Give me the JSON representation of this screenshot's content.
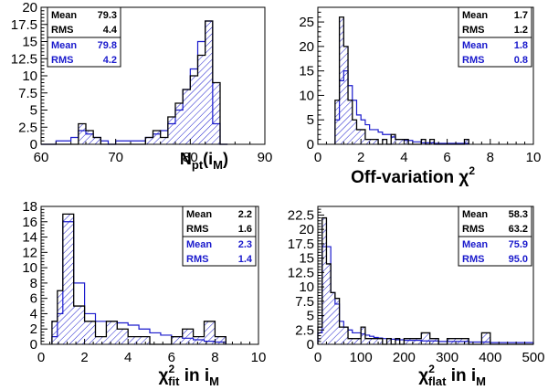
{
  "colors": {
    "black_series": "#000000",
    "blue_series": "#1a1acc"
  },
  "chart_data": [
    {
      "type": "histogram",
      "title": "",
      "xlabel": "N_pt(i_M)",
      "xlabel_main": "N",
      "xlabel_sub": "pt",
      "xlabel_tail": "(i",
      "xlabel_tail_sub": "M",
      "xlabel_end": ")",
      "xlim": [
        60,
        90
      ],
      "ylim": [
        0,
        20
      ],
      "xticks": [
        60,
        70,
        80,
        90
      ],
      "yticks": [
        0,
        2.5,
        5,
        7.5,
        10,
        12.5,
        15,
        17.5,
        20
      ],
      "xtick_labels": [
        "60",
        "70",
        "80",
        "90"
      ],
      "ytick_labels": [
        "0",
        "2.5",
        "5",
        "7.5",
        "10",
        "12.5",
        "15",
        "17.5",
        "20"
      ],
      "bin_edges": [
        60,
        61,
        62,
        63,
        64,
        65,
        66,
        67,
        68,
        69,
        70,
        71,
        72,
        73,
        74,
        75,
        76,
        77,
        78,
        79,
        80,
        81,
        82,
        83,
        84,
        85
      ],
      "series": [
        {
          "name": "black",
          "values": [
            0,
            0,
            0,
            0,
            0,
            3,
            2,
            1,
            0,
            0,
            0,
            0,
            0,
            0,
            1,
            2,
            1,
            4,
            6,
            8,
            10,
            13,
            18,
            9,
            0
          ],
          "filled": true
        },
        {
          "name": "blue",
          "values": [
            0,
            0,
            0.5,
            0.5,
            1,
            2,
            1.5,
            1,
            0.5,
            0,
            0.5,
            0.5,
            0.5,
            0.5,
            1,
            1.5,
            2,
            3,
            5,
            8,
            11,
            15,
            18,
            3,
            0
          ],
          "filled": false
        }
      ],
      "stats": {
        "black": [
          {
            "label": "Mean",
            "value": "79.3"
          },
          {
            "label": "RMS",
            "value": "4.4"
          }
        ],
        "blue": [
          {
            "label": "Mean",
            "value": "79.8"
          },
          {
            "label": "RMS",
            "value": "4.2"
          }
        ]
      }
    },
    {
      "type": "histogram",
      "title": "",
      "xlabel": "Off-variation χ2",
      "xlabel_main": "Off-variation χ",
      "xlabel_sup": "2",
      "xlim": [
        0,
        10
      ],
      "ylim": [
        0,
        28
      ],
      "xticks": [
        0,
        2,
        4,
        6,
        8,
        10
      ],
      "yticks": [
        0,
        5,
        10,
        15,
        20,
        25
      ],
      "xtick_labels": [
        "0",
        "2",
        "4",
        "6",
        "8",
        "10"
      ],
      "ytick_labels": [
        "0",
        "5",
        "10",
        "15",
        "20",
        "25"
      ],
      "bin_edges": [
        0.8,
        1.0,
        1.2,
        1.4,
        1.6,
        1.8,
        2.0,
        2.2,
        2.4,
        2.6,
        2.8,
        3.0,
        3.2,
        3.4,
        3.6,
        3.8,
        4.0,
        4.2,
        4.4,
        4.6,
        4.8,
        5.0,
        5.2,
        5.4,
        6.8,
        7.0
      ],
      "series": [
        {
          "name": "black",
          "values": [
            9,
            26,
            20,
            9,
            5,
            3,
            3,
            1,
            1,
            1,
            0,
            1,
            0,
            2,
            1,
            1,
            1,
            0,
            0,
            0,
            1,
            0,
            1,
            0,
            1
          ],
          "filled": true
        },
        {
          "name": "blue",
          "values": [
            5,
            13,
            15,
            12,
            9,
            6,
            5,
            4,
            3,
            3,
            2.5,
            2,
            2,
            1.5,
            1,
            1,
            0.8,
            0.8,
            0.5,
            0.5,
            0.3,
            0.3,
            0.3,
            0.2,
            0.2
          ],
          "filled": false
        }
      ],
      "stats": {
        "black": [
          {
            "label": "Mean",
            "value": "1.7"
          },
          {
            "label": "RMS",
            "value": "1.2"
          }
        ],
        "blue": [
          {
            "label": "Mean",
            "value": "1.8"
          },
          {
            "label": "RMS",
            "value": "0.8"
          }
        ]
      }
    },
    {
      "type": "histogram",
      "title": "",
      "xlabel": "χ2 fit in iM",
      "xlabel_main": "χ",
      "xlabel_sup": "2",
      "xlabel_sub": "fit",
      "xlabel_tail": " in i",
      "xlabel_tail_sub": "M",
      "xlim": [
        0,
        10
      ],
      "ylim": [
        0,
        18
      ],
      "xticks": [
        0,
        2,
        4,
        6,
        8,
        10
      ],
      "yticks": [
        0,
        2,
        4,
        6,
        8,
        10,
        12,
        14,
        16,
        18
      ],
      "xtick_labels": [
        "0",
        "2",
        "4",
        "6",
        "8",
        "10"
      ],
      "ytick_labels": [
        "0",
        "2",
        "4",
        "6",
        "8",
        "10",
        "12",
        "14",
        "16",
        "18"
      ],
      "bin_edges": [
        0.5,
        0.75,
        1.0,
        1.5,
        2.0,
        2.5,
        3.0,
        3.5,
        4.0,
        4.5,
        5.0,
        5.5,
        6.0,
        6.5,
        7.0,
        7.5,
        8.0,
        8.5
      ],
      "series": [
        {
          "name": "black",
          "values": [
            3,
            7,
            17,
            5,
            3,
            1,
            3,
            2,
            1,
            1,
            0,
            0,
            1,
            2,
            1,
            3,
            1
          ],
          "filled": true
        },
        {
          "name": "blue",
          "values": [
            1,
            4,
            16,
            8,
            4,
            3,
            3,
            2.8,
            2.5,
            2,
            1.5,
            1.2,
            1,
            0.8,
            0.6,
            0.4,
            0.3
          ],
          "filled": false
        }
      ],
      "stats": {
        "black": [
          {
            "label": "Mean",
            "value": "2.2"
          },
          {
            "label": "RMS",
            "value": "1.6"
          }
        ],
        "blue": [
          {
            "label": "Mean",
            "value": "2.3"
          },
          {
            "label": "RMS",
            "value": "1.4"
          }
        ]
      }
    },
    {
      "type": "histogram",
      "title": "",
      "xlabel": "χ2 flat in iM",
      "xlabel_main": "χ",
      "xlabel_sup": "2",
      "xlabel_sub": "flat",
      "xlabel_tail": " in i",
      "xlabel_tail_sub": "M",
      "xlim": [
        0,
        500
      ],
      "ylim": [
        0,
        24
      ],
      "xticks": [
        0,
        100,
        200,
        300,
        400,
        500
      ],
      "yticks": [
        0,
        2.5,
        5,
        7.5,
        10,
        12.5,
        15,
        17.5,
        20,
        22.5
      ],
      "xtick_labels": [
        "0",
        "100",
        "200",
        "300",
        "400",
        "500"
      ],
      "ytick_labels": [
        "0",
        "2.5",
        "5",
        "7.5",
        "10",
        "12.5",
        "15",
        "17.5",
        "20",
        "22.5"
      ],
      "bin_edges": [
        0,
        10,
        20,
        30,
        40,
        50,
        60,
        70,
        80,
        90,
        100,
        110,
        120,
        130,
        140,
        150,
        160,
        170,
        180,
        190,
        200,
        220,
        240,
        260,
        280,
        300,
        350,
        380,
        400,
        420,
        500
      ],
      "series": [
        {
          "name": "black",
          "values": [
            3,
            22,
            14,
            9,
            8,
            3,
            3,
            1,
            1,
            1,
            3,
            1,
            1,
            1,
            1,
            0,
            1,
            0,
            1,
            0,
            1,
            1,
            2,
            1,
            0,
            1,
            0,
            2,
            0,
            0
          ],
          "filled": true
        },
        {
          "name": "blue",
          "values": [
            2,
            17,
            17,
            9,
            7,
            4,
            3,
            2.5,
            2,
            2,
            1.8,
            1.6,
            1.4,
            1.2,
            1.1,
            1,
            1,
            0.9,
            0.8,
            0.8,
            0.7,
            0.7,
            0.6,
            0.6,
            0.5,
            0.5,
            0.4,
            0.4,
            0.3,
            0.3
          ],
          "filled": false
        }
      ],
      "stats": {
        "black": [
          {
            "label": "Mean",
            "value": "58.3"
          },
          {
            "label": "RMS",
            "value": "63.2"
          }
        ],
        "blue": [
          {
            "label": "Mean",
            "value": "75.9"
          },
          {
            "label": "RMS",
            "value": "95.0"
          }
        ]
      }
    }
  ]
}
